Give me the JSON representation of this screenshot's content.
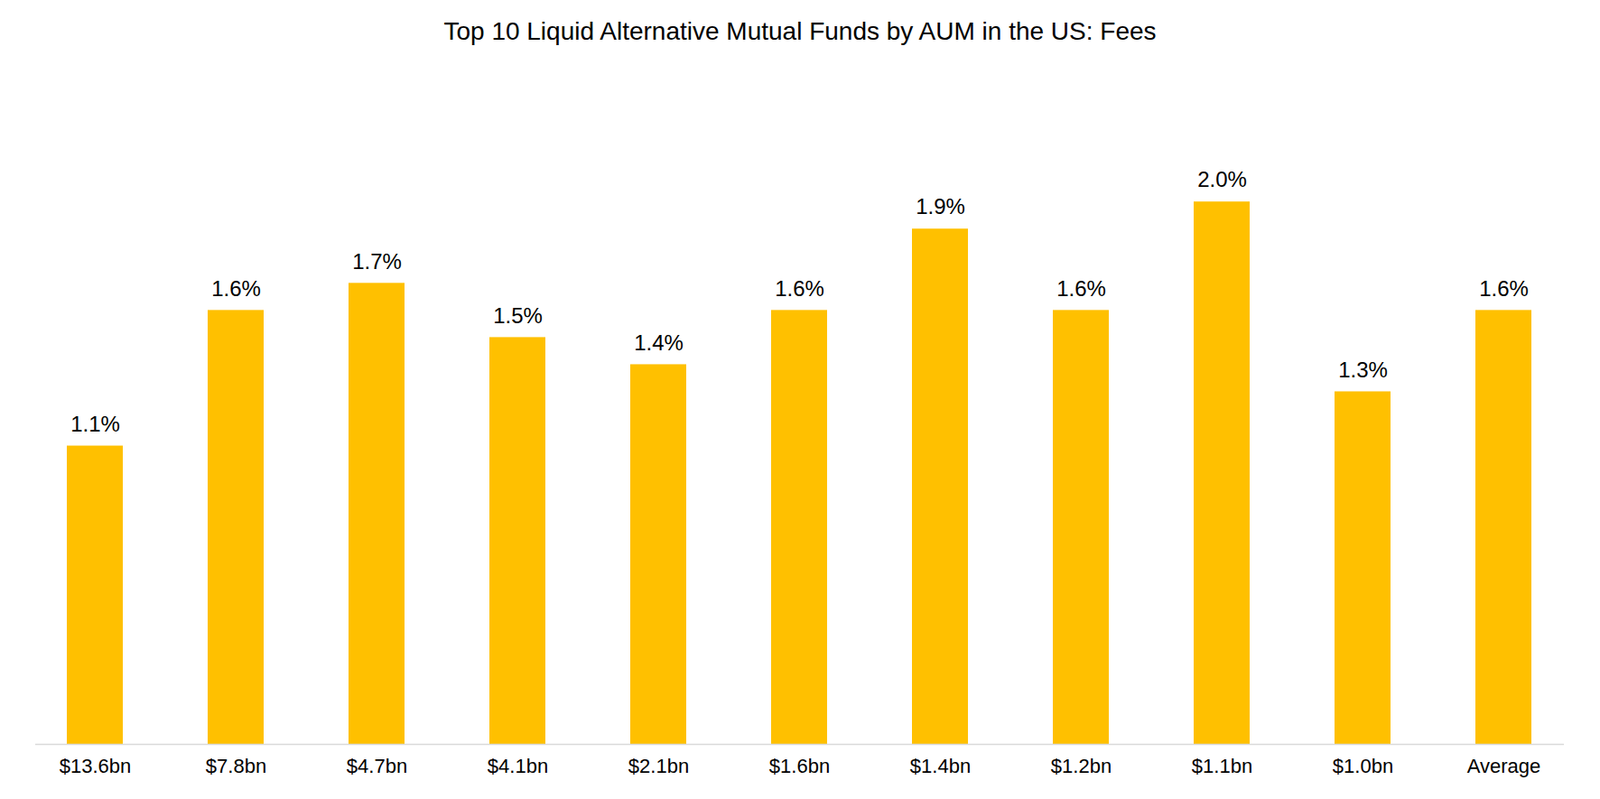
{
  "chart_data": {
    "type": "bar",
    "title": "Top 10 Liquid Alternative Mutual Funds by AUM in the US: Fees",
    "categories": [
      "$13.6bn",
      "$7.8bn",
      "$4.7bn",
      "$4.1bn",
      "$2.1bn",
      "$1.6bn",
      "$1.4bn",
      "$1.2bn",
      "$1.1bn",
      "$1.0bn",
      "Average"
    ],
    "values": [
      1.1,
      1.6,
      1.7,
      1.5,
      1.4,
      1.6,
      1.9,
      1.6,
      2.0,
      1.3,
      1.6
    ],
    "value_labels": [
      "1.1%",
      "1.6%",
      "1.7%",
      "1.5%",
      "1.4%",
      "1.6%",
      "1.9%",
      "1.6%",
      "2.0%",
      "1.3%",
      "1.6%"
    ],
    "color": "#FFC000",
    "ylim": [
      0,
      2.5
    ],
    "grid": false,
    "data_labels": true,
    "tick_labels": "x"
  }
}
